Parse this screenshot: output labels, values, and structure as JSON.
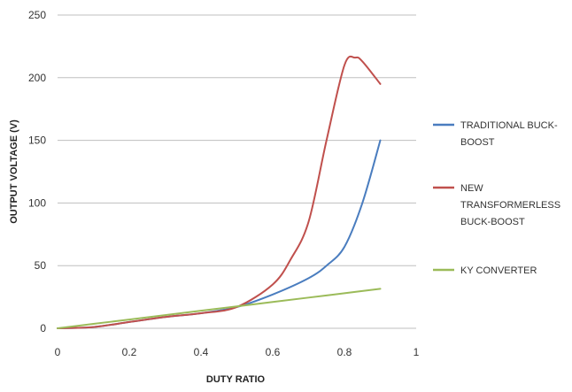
{
  "chart_data": {
    "type": "line",
    "title": "",
    "xlabel": "DUTY RATIO",
    "ylabel": "OUTPUT VOLTAGE (V)",
    "xlim": [
      0,
      1
    ],
    "ylim": [
      0,
      250
    ],
    "x_ticks": [
      "0",
      "0.2",
      "0.4",
      "0.6",
      "0.8",
      "1"
    ],
    "y_ticks": [
      "0",
      "50",
      "100",
      "150",
      "200",
      "250"
    ],
    "grid": "horizontal",
    "legend_position": "right",
    "series": [
      {
        "name": "TRADITIONAL BUCK-BOOST",
        "color": "#4a7dbf",
        "x": [
          0,
          0.1,
          0.2,
          0.3,
          0.4,
          0.5,
          0.6,
          0.7,
          0.75,
          0.8,
          0.85,
          0.9
        ],
        "y": [
          0,
          1,
          5,
          9,
          12,
          17,
          27,
          40,
          50,
          65,
          100,
          150
        ]
      },
      {
        "name": "NEW TRANSFORMERLESS BUCK-BOOST",
        "color": "#c0504d",
        "x": [
          0,
          0.1,
          0.2,
          0.3,
          0.4,
          0.5,
          0.6,
          0.65,
          0.7,
          0.75,
          0.8,
          0.83,
          0.85,
          0.9
        ],
        "y": [
          0,
          1,
          5,
          9,
          12,
          17,
          35,
          55,
          85,
          150,
          210,
          216,
          213,
          195
        ]
      },
      {
        "name": "KY CONVERTER",
        "color": "#9bbb59",
        "x": [
          0,
          0.1,
          0.2,
          0.3,
          0.4,
          0.5,
          0.6,
          0.7,
          0.8,
          0.9
        ],
        "y": [
          0,
          3.5,
          7,
          10.5,
          14,
          17.5,
          21,
          24.5,
          28,
          31.5
        ]
      }
    ],
    "legend": [
      {
        "lines": [
          "TRADITIONAL BUCK-",
          "BOOST"
        ]
      },
      {
        "lines": [
          "NEW",
          "TRANSFORMERLESS",
          "BUCK-BOOST"
        ]
      },
      {
        "lines": [
          "KY CONVERTER"
        ]
      }
    ]
  }
}
